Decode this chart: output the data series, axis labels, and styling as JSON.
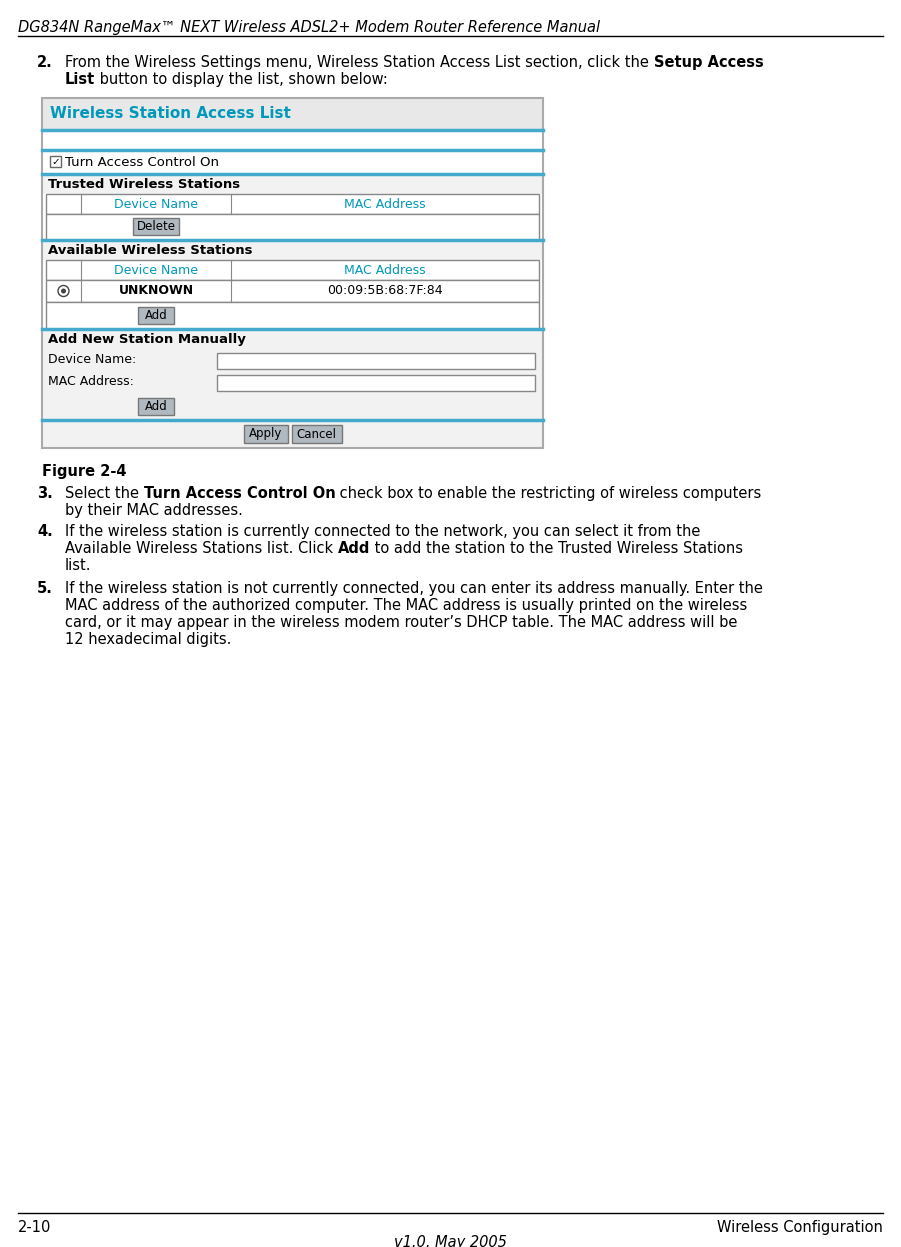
{
  "header_title": "DG834N RangeMax™ NEXT Wireless ADSL2+ Modem Router Reference Manual",
  "footer_left": "2-10",
  "footer_right": "Wireless Configuration",
  "footer_center": "v1.0, May 2005",
  "bg_color": "#ffffff",
  "body_font_size": 10.5,
  "panel_title": "Wireless Station Access List",
  "panel_title_color": "#0099bb",
  "panel_bg": "#f2f2f2",
  "panel_border_color": "#aaaaaa",
  "panel_line_color": "#44aacc",
  "checkbox_label": "Turn Access Control On",
  "trusted_section": "Trusted Wireless Stations",
  "trusted_col1": "Device Name",
  "trusted_col2": "MAC Address",
  "col_color": "#0099bb",
  "delete_btn": "Delete",
  "available_section": "Available Wireless Stations",
  "avail_row_device": "UNKNOWN",
  "avail_row_mac": "00:09:5B:68:7F:84",
  "add_btn": "Add",
  "manual_section": "Add New Station Manually",
  "device_name_label": "Device Name:",
  "mac_address_label": "MAC Address:",
  "apply_btn": "Apply",
  "cancel_btn": "Cancel",
  "btn_bg": "#b0b8c0",
  "btn_border": "#777777",
  "table_bg": "#ffffff",
  "table_border": "#888888",
  "input_bg": "#ffffff",
  "input_border": "#888888",
  "figure_label": "Figure 2-4"
}
